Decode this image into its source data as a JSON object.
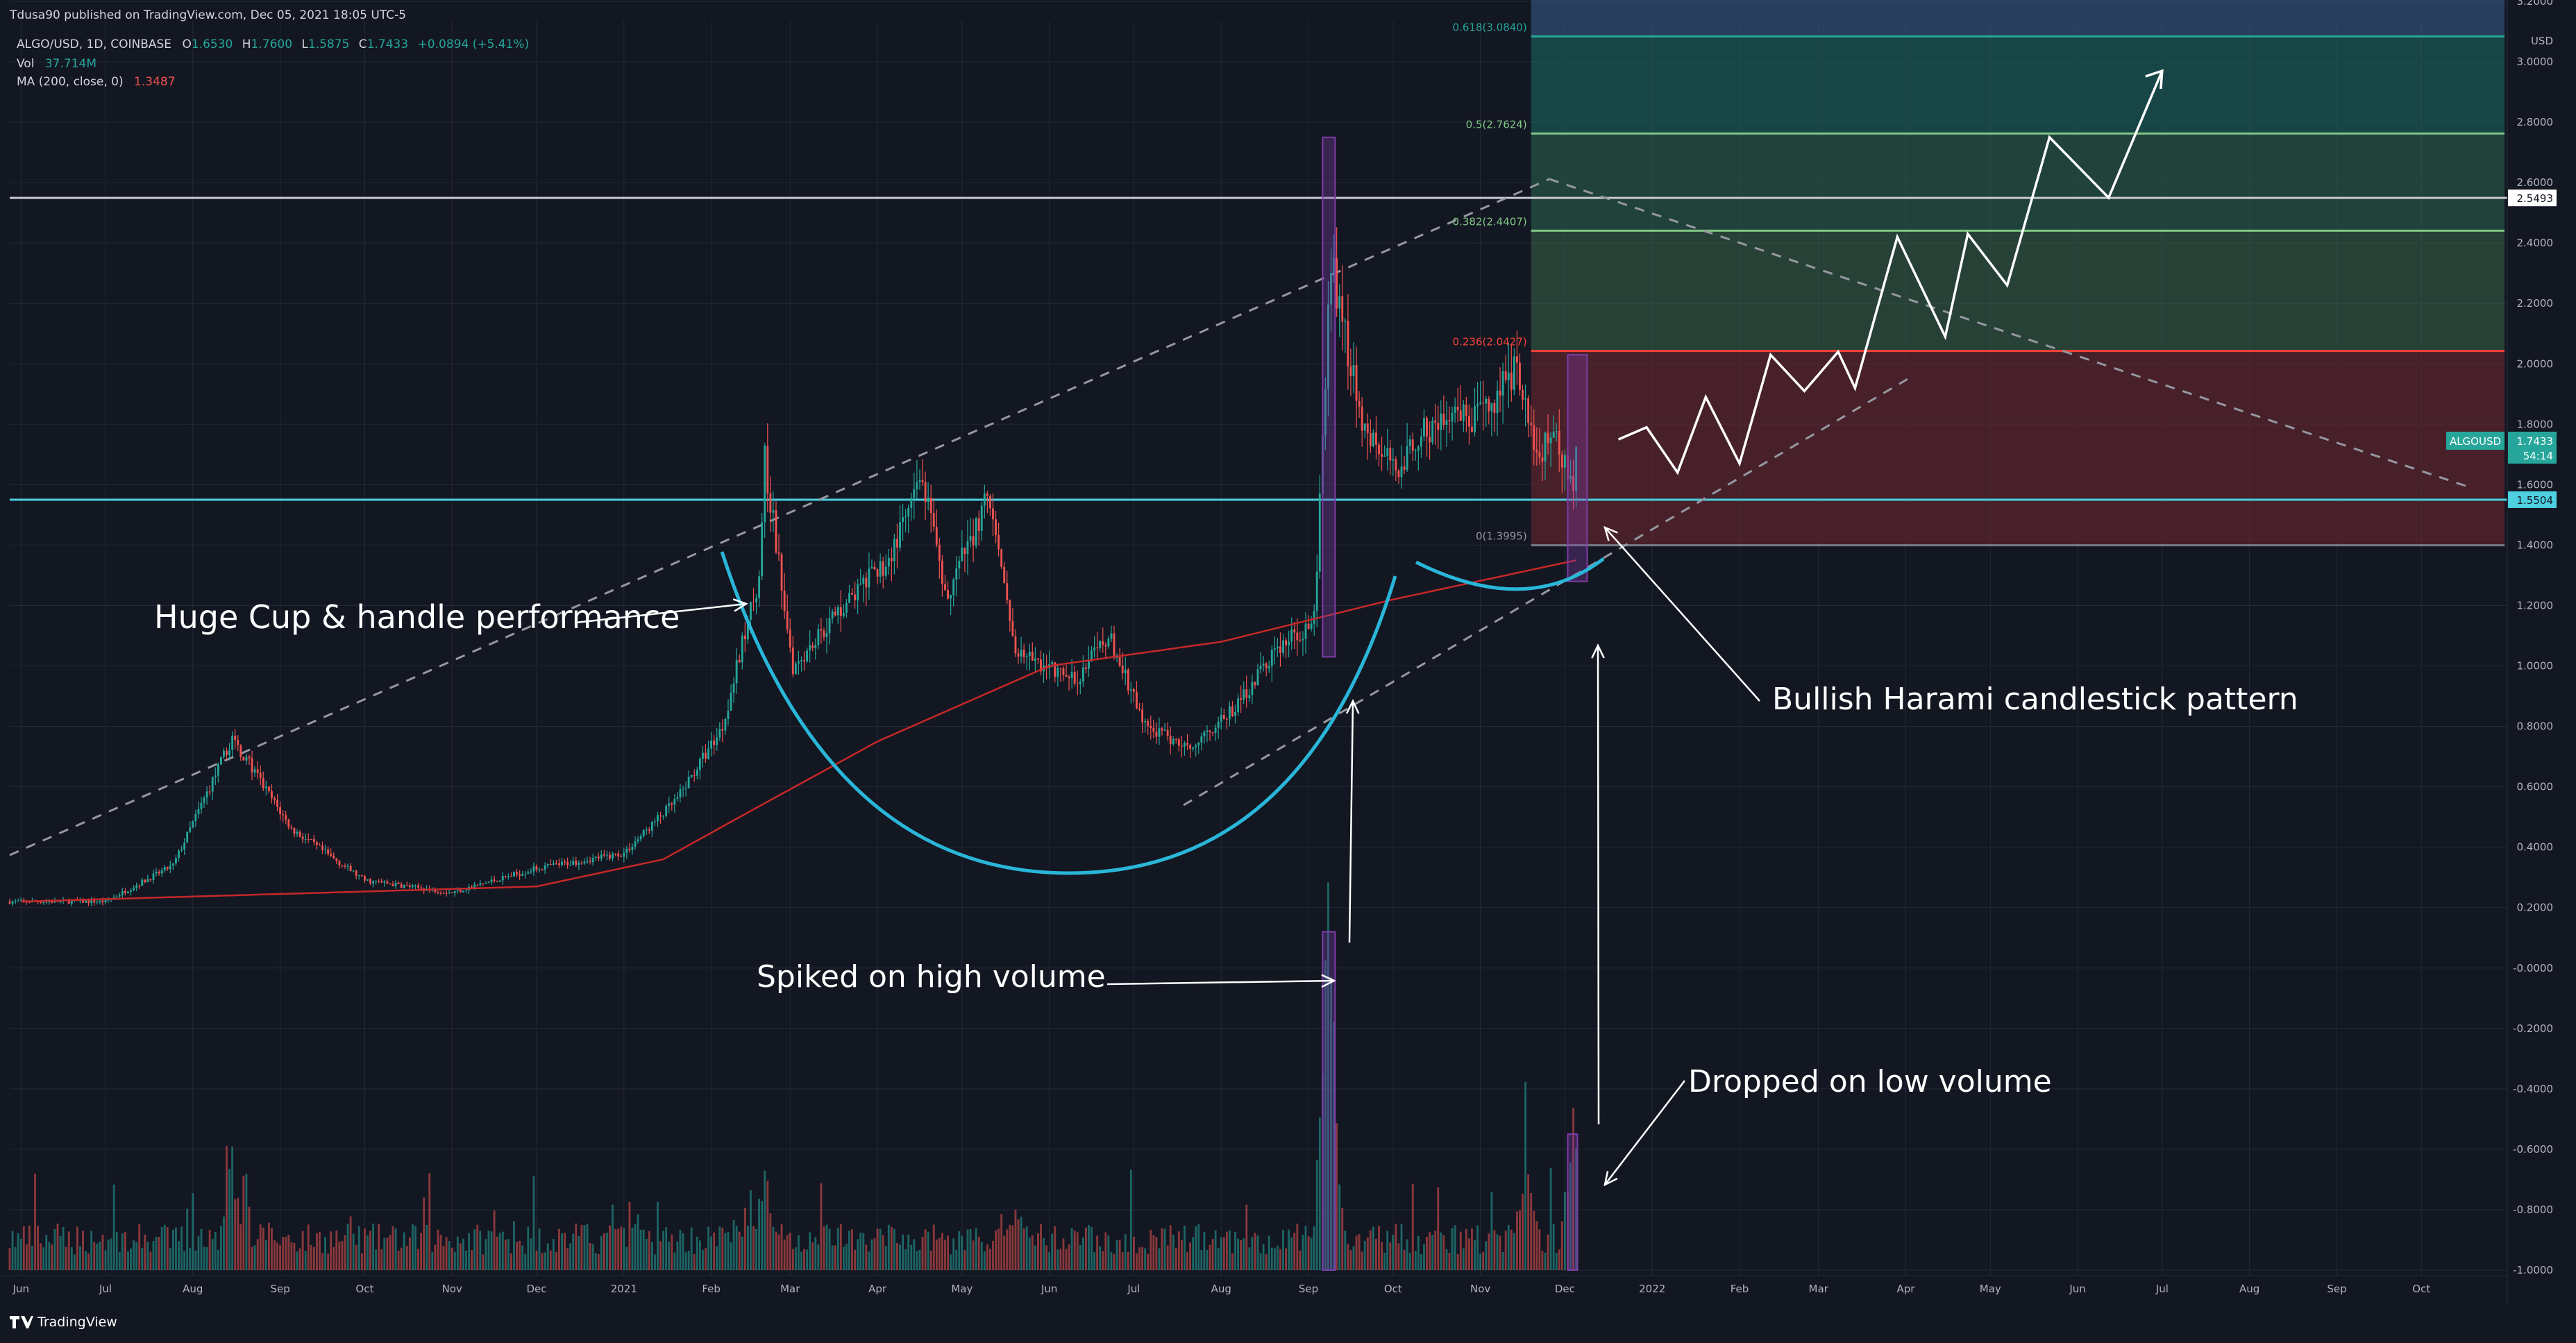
{
  "header": {
    "published": "Tdusa90 published on TradingView.com, Dec 05, 2021 18:05 UTC-5",
    "symbol": "ALGO/USD, 1D, COINBASE",
    "ohlc": {
      "o_label": "O",
      "o": "1.6530",
      "h_label": "H",
      "h": "1.7600",
      "l_label": "L",
      "l": "1.5875",
      "c_label": "C",
      "c": "1.7433",
      "change": "+0.0894 (+5.41%)"
    },
    "vol": {
      "label": "Vol",
      "value": "37.714M"
    },
    "ma": {
      "label": "MA (200, close, 0)",
      "value": "1.3487"
    }
  },
  "footer": {
    "brand": "TradingView"
  },
  "colors": {
    "background": "#131722",
    "grid": "#242838",
    "up": "#26a69a",
    "down": "#ef5350",
    "ma": "#c62828",
    "cup": "#29b6d8",
    "support": "#4dd0e1",
    "fib_red": "#f44336",
    "fib_green": "#81c784",
    "fib_teal": "#26a69a",
    "highlight": "#7e3ca8"
  },
  "chart_data": {
    "type": "candlestick",
    "axis": {
      "currency": "USD",
      "y_ticks": [
        "3.2000",
        "3.0000",
        "2.8000",
        "2.6000",
        "2.4000",
        "2.2000",
        "2.0000",
        "1.8000",
        "1.6000",
        "1.4000",
        "1.2000",
        "1.0000",
        "0.8000",
        "0.6000",
        "0.4000",
        "0.2000",
        "-0.0000",
        "-0.2000",
        "-0.4000",
        "-0.6000",
        "-0.8000",
        "-1.0000"
      ],
      "y_values": [
        3.2,
        3.0,
        2.8,
        2.6,
        2.4,
        2.2,
        2.0,
        1.8,
        1.6,
        1.4,
        1.2,
        1.0,
        0.8,
        0.6,
        0.4,
        0.2,
        0.0,
        -0.2,
        -0.4,
        -0.6,
        -0.8,
        -1.0
      ],
      "x_ticks": [
        "Jun",
        "Jul",
        "Aug",
        "Sep",
        "Oct",
        "Nov",
        "Dec",
        "2021",
        "Feb",
        "Mar",
        "Apr",
        "May",
        "Jun",
        "Jul",
        "Aug",
        "Sep",
        "Oct",
        "Nov",
        "Dec",
        "2022",
        "Feb",
        "Mar",
        "Apr",
        "May",
        "Jun",
        "Jul",
        "Aug",
        "Sep",
        "Oct"
      ],
      "x_dates": [
        "2020-06-01",
        "2020-07-01",
        "2020-08-01",
        "2020-09-01",
        "2020-10-01",
        "2020-11-01",
        "2020-12-01",
        "2021-01-01",
        "2021-02-01",
        "2021-03-01",
        "2021-04-01",
        "2021-05-01",
        "2021-06-01",
        "2021-07-01",
        "2021-08-01",
        "2021-09-01",
        "2021-10-01",
        "2021-11-01",
        "2021-12-01",
        "2022-01-01",
        "2022-02-01",
        "2022-03-01",
        "2022-04-01",
        "2022-05-01",
        "2022-06-01",
        "2022-07-01",
        "2022-08-01",
        "2022-09-01",
        "2022-10-01"
      ]
    },
    "price_key_points": [
      [
        "2020-05-28",
        0.22
      ],
      [
        "2020-07-01",
        0.22
      ],
      [
        "2020-07-25",
        0.34
      ],
      [
        "2020-08-15",
        0.76
      ],
      [
        "2020-09-05",
        0.46
      ],
      [
        "2020-10-01",
        0.29
      ],
      [
        "2020-11-01",
        0.25
      ],
      [
        "2020-12-01",
        0.33
      ],
      [
        "2021-01-01",
        0.38
      ],
      [
        "2021-01-20",
        0.56
      ],
      [
        "2021-02-05",
        0.8
      ],
      [
        "2021-02-18",
        1.3
      ],
      [
        "2021-02-20",
        1.68
      ],
      [
        "2021-03-02",
        1.0
      ],
      [
        "2021-03-20",
        1.2
      ],
      [
        "2021-04-05",
        1.35
      ],
      [
        "2021-04-17",
        1.62
      ],
      [
        "2021-04-25",
        1.22
      ],
      [
        "2021-05-10",
        1.55
      ],
      [
        "2021-05-20",
        1.05
      ],
      [
        "2021-06-10",
        0.95
      ],
      [
        "2021-06-22",
        1.1
      ],
      [
        "2021-07-05",
        0.8
      ],
      [
        "2021-07-20",
        0.73
      ],
      [
        "2021-08-05",
        0.85
      ],
      [
        "2021-08-20",
        1.05
      ],
      [
        "2021-09-03",
        1.15
      ],
      [
        "2021-09-09",
        2.35
      ],
      [
        "2021-09-20",
        1.8
      ],
      [
        "2021-10-01",
        1.65
      ],
      [
        "2021-10-15",
        1.8
      ],
      [
        "2021-11-01",
        1.82
      ],
      [
        "2021-11-14",
        2.0
      ],
      [
        "2021-11-20",
        1.7
      ],
      [
        "2021-11-28",
        1.75
      ],
      [
        "2021-12-04",
        1.59
      ],
      [
        "2021-12-05",
        1.74
      ]
    ],
    "ma_key_points": [
      [
        "2020-06-01",
        0.22
      ],
      [
        "2020-12-01",
        0.27
      ],
      [
        "2021-01-15",
        0.36
      ],
      [
        "2021-02-15",
        0.52
      ],
      [
        "2021-04-01",
        0.75
      ],
      [
        "2021-06-01",
        1.0
      ],
      [
        "2021-08-01",
        1.08
      ],
      [
        "2021-10-01",
        1.22
      ],
      [
        "2021-12-05",
        1.35
      ]
    ],
    "volume_key_points": [
      [
        "2020-08-15",
        0.35
      ],
      [
        "2021-02-20",
        0.3
      ],
      [
        "2021-05-20",
        0.22
      ],
      [
        "2021-09-08",
        1.0
      ],
      [
        "2021-11-18",
        0.32
      ],
      [
        "2021-12-04",
        0.42
      ]
    ],
    "horizontal_levels": [
      {
        "value": 2.5493,
        "label": "2.5493"
      },
      {
        "value": 1.5504,
        "label": "1.5504"
      }
    ],
    "current_price": {
      "symbol": "ALGOUSD",
      "value": "1.7433",
      "countdown": "54:14"
    },
    "fib_levels": [
      {
        "ratio": "0.618",
        "value": 3.084,
        "label": "0.618(3.0840)"
      },
      {
        "ratio": "0.5",
        "value": 2.7624,
        "label": "0.5(2.7624)"
      },
      {
        "ratio": "0.382",
        "value": 2.4407,
        "label": "0.382(2.4407)"
      },
      {
        "ratio": "0.236",
        "value": 2.0427,
        "label": "0.236(2.0427)"
      },
      {
        "ratio": "0",
        "value": 1.3995,
        "label": "0(1.3995)"
      }
    ],
    "projection_path": [
      [
        "2021-12-20",
        1.75
      ],
      [
        "2021-12-30",
        1.79
      ],
      [
        "2022-01-10",
        1.64
      ],
      [
        "2022-01-20",
        1.89
      ],
      [
        "2022-02-01",
        1.67
      ],
      [
        "2022-02-12",
        2.03
      ],
      [
        "2022-02-24",
        1.91
      ],
      [
        "2022-03-08",
        2.04
      ],
      [
        "2022-03-14",
        1.92
      ],
      [
        "2022-03-29",
        2.42
      ],
      [
        "2022-04-15",
        2.09
      ],
      [
        "2022-04-23",
        2.43
      ],
      [
        "2022-05-07",
        2.26
      ],
      [
        "2022-05-22",
        2.75
      ],
      [
        "2022-06-12",
        2.55
      ],
      [
        "2022-07-01",
        2.97
      ]
    ],
    "annotations": [
      {
        "text": "Huge Cup & handle performance"
      },
      {
        "text": "Spiked on high volume"
      },
      {
        "text": "Bullish Harami candlestick pattern"
      },
      {
        "text": "Dropped on low volume"
      }
    ]
  }
}
